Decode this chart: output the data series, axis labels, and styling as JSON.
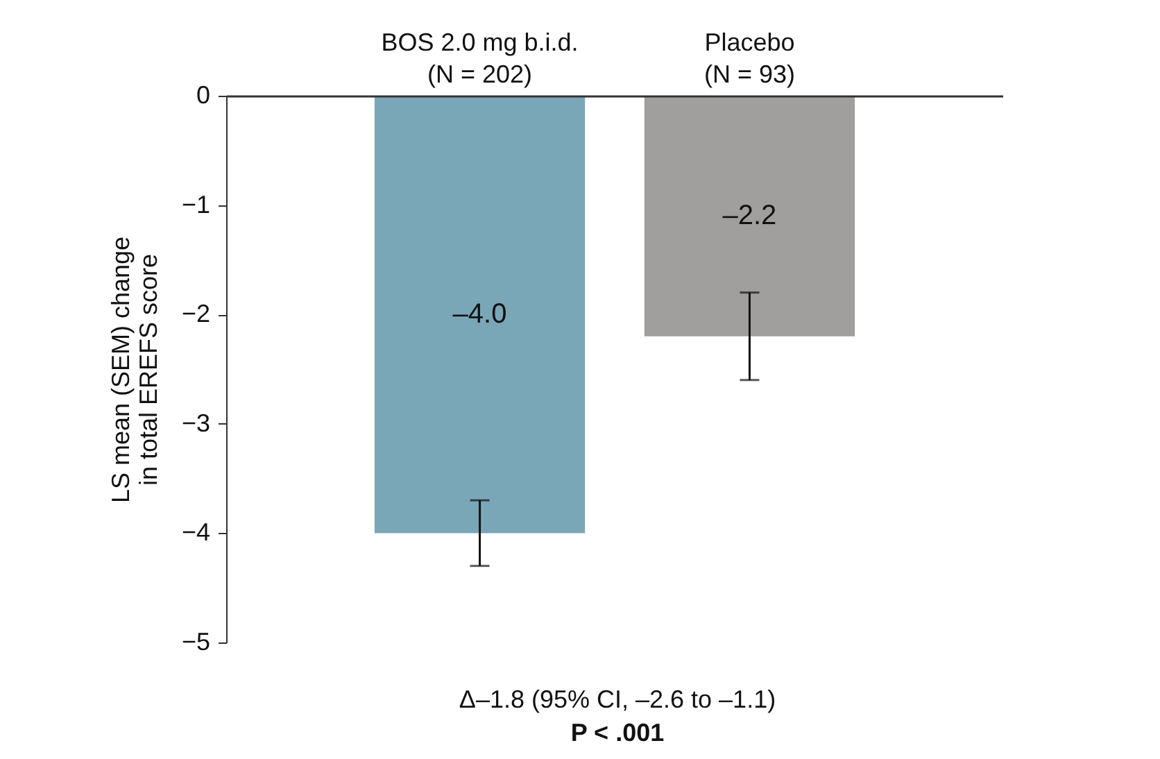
{
  "chart_data": {
    "type": "bar",
    "ylabel": "LS mean (SEM) change\nin total EREFS score",
    "categories": [
      "BOS 2.0 mg b.i.d.\n(N = 202)",
      "Placebo\n(N = 93)"
    ],
    "values": [
      -4.0,
      -2.2
    ],
    "colors": [
      "#7aa7b7",
      "#a19e9e"
    ],
    "errors": [
      0.3,
      0.4
    ],
    "value_labels": [
      "–4.0",
      "–2.2"
    ],
    "ylim": [
      -5,
      0
    ],
    "yticks": [
      -5,
      -4,
      -3,
      -2,
      -1,
      0
    ],
    "grid": false,
    "annotations": [
      "Δ–1.8 (95% CI, –2.6 to –1.1)",
      "P < .001"
    ]
  }
}
